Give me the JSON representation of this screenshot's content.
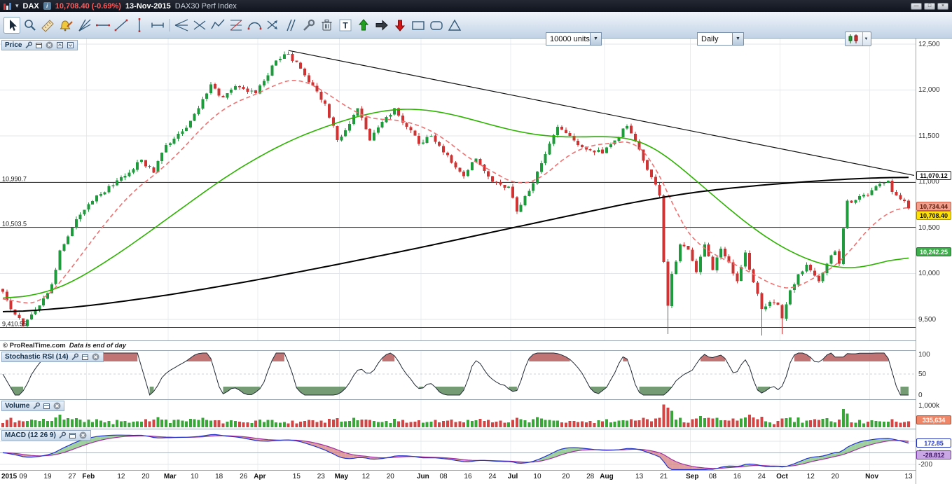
{
  "title_bar": {
    "symbol": "DAX",
    "price_change": "10,708.40 (-0.69%)",
    "date": "13-Nov-2015",
    "index_name": "DAX30 Perf Index"
  },
  "toolbar": {
    "units": "10000 units",
    "period": "Daily",
    "tools": [
      "cursor",
      "zoom",
      "ruler",
      "alarm-draw",
      "trend-fan",
      "horizontal-line",
      "oblique-line",
      "vertical-segment",
      "horizontal-segment",
      "pitchfork",
      "crossed-lines",
      "zigzag",
      "fibonacci-retracement",
      "arc",
      "crossed-arrows",
      "parallel-lines",
      "drawing-tools",
      "delete",
      "text",
      "arrow-up",
      "arrow-right",
      "arrow-down",
      "rectangle",
      "rounded-rectangle",
      "triangle"
    ]
  },
  "price_panel": {
    "title": "Price",
    "copyright_brand": "© ProRealTime.com",
    "copyright_note": "Data is end of day"
  },
  "stoch_panel": {
    "title": "Stochastic RSI (14)"
  },
  "volume_panel": {
    "title": "Volume"
  },
  "macd_panel": {
    "title": "MACD (12 26 9)"
  },
  "chart_data": {
    "type": "candlestick+indicators",
    "instrument": "DAX30 Perf Index",
    "timeframe": "Daily",
    "days": 223,
    "month_lines": [
      21,
      41,
      63,
      83,
      103,
      125,
      148,
      169,
      191,
      213
    ],
    "price": {
      "ylim": [
        9270,
        12560
      ],
      "y_ticks": [
        {
          "v": 12500,
          "label": "12,500"
        },
        {
          "v": 12000,
          "label": "12,000"
        },
        {
          "v": 11500,
          "label": "11,500"
        },
        {
          "v": 11000,
          "label": "11,000"
        },
        {
          "v": 10500,
          "label": "10,500"
        },
        {
          "v": 10000,
          "label": "10,000"
        },
        {
          "v": 9500,
          "label": "9,500"
        }
      ],
      "levels": [
        {
          "v": 10990.7,
          "label": "10,990.7"
        },
        {
          "v": 10503.5,
          "label": "10,503.5"
        },
        {
          "v": 9410.55,
          "label": "9,410.55"
        }
      ],
      "trendline": {
        "from_day": 70,
        "from_value": 12430,
        "right_edge_value": 11068
      },
      "close_anchors": [
        [
          0,
          9800
        ],
        [
          2,
          9610
        ],
        [
          5,
          9430
        ],
        [
          9,
          9650
        ],
        [
          12,
          9880
        ],
        [
          14,
          10250
        ],
        [
          17,
          10500
        ],
        [
          20,
          10694
        ],
        [
          23,
          10850
        ],
        [
          27,
          10960
        ],
        [
          31,
          11100
        ],
        [
          34,
          11240
        ],
        [
          37,
          11100
        ],
        [
          40,
          11401
        ],
        [
          44,
          11550
        ],
        [
          48,
          11800
        ],
        [
          51,
          12060
        ],
        [
          54,
          11920
        ],
        [
          57,
          12040
        ],
        [
          60,
          11980
        ],
        [
          62,
          11966
        ],
        [
          64,
          12100
        ],
        [
          67,
          12320
        ],
        [
          70,
          12390
        ],
        [
          73,
          12230
        ],
        [
          76,
          12050
        ],
        [
          79,
          11850
        ],
        [
          82,
          11454
        ],
        [
          84,
          11560
        ],
        [
          87,
          11800
        ],
        [
          90,
          11450
        ],
        [
          93,
          11650
        ],
        [
          96,
          11800
        ],
        [
          99,
          11600
        ],
        [
          102,
          11413
        ],
        [
          105,
          11500
        ],
        [
          109,
          11290
        ],
        [
          113,
          11060
        ],
        [
          116,
          11250
        ],
        [
          120,
          11000
        ],
        [
          124,
          10945
        ],
        [
          126,
          10676
        ],
        [
          129,
          10900
        ],
        [
          132,
          11200
        ],
        [
          136,
          11600
        ],
        [
          139,
          11500
        ],
        [
          143,
          11350
        ],
        [
          147,
          11309
        ],
        [
          150,
          11450
        ],
        [
          153,
          11604
        ],
        [
          156,
          11350
        ],
        [
          159,
          11050
        ],
        [
          161,
          10850
        ],
        [
          162,
          10124
        ],
        [
          163,
          9648
        ],
        [
          164,
          9997
        ],
        [
          165,
          10130
        ],
        [
          166,
          10315
        ],
        [
          168,
          10259
        ],
        [
          170,
          10015
        ],
        [
          172,
          10317
        ],
        [
          174,
          10038
        ],
        [
          176,
          10270
        ],
        [
          178,
          10120
        ],
        [
          180,
          9916
        ],
        [
          182,
          10229
        ],
        [
          184,
          9902
        ],
        [
          186,
          9612
        ],
        [
          188,
          9688
        ],
        [
          190,
          9660
        ],
        [
          191,
          9509
        ],
        [
          193,
          9814
        ],
        [
          195,
          9993
        ],
        [
          197,
          10096
        ],
        [
          198,
          10032
        ],
        [
          200,
          9915
        ],
        [
          202,
          10104
        ],
        [
          204,
          10240
        ],
        [
          205,
          10104
        ],
        [
          206,
          10492
        ],
        [
          207,
          10794
        ],
        [
          209,
          10801
        ],
        [
          212,
          10850
        ],
        [
          214,
          10950
        ],
        [
          216,
          10988
        ],
        [
          217,
          11010
        ],
        [
          218,
          10888
        ],
        [
          220,
          10808
        ],
        [
          221,
          10790
        ],
        [
          222,
          10708
        ]
      ],
      "wick_lows": [
        [
          163,
          9338
        ],
        [
          186,
          9325
        ],
        [
          191,
          9338
        ]
      ],
      "ma_fast_red": [
        [
          0,
          9750
        ],
        [
          5,
          9660
        ],
        [
          10,
          9700
        ],
        [
          15,
          9950
        ],
        [
          20,
          10250
        ],
        [
          26,
          10600
        ],
        [
          32,
          10900
        ],
        [
          38,
          11100
        ],
        [
          44,
          11350
        ],
        [
          50,
          11650
        ],
        [
          56,
          11850
        ],
        [
          62,
          11950
        ],
        [
          68,
          12080
        ],
        [
          72,
          12130
        ],
        [
          78,
          12010
        ],
        [
          84,
          11820
        ],
        [
          90,
          11680
        ],
        [
          96,
          11680
        ],
        [
          102,
          11620
        ],
        [
          108,
          11480
        ],
        [
          114,
          11260
        ],
        [
          120,
          11110
        ],
        [
          126,
          10960
        ],
        [
          132,
          11030
        ],
        [
          138,
          11280
        ],
        [
          144,
          11400
        ],
        [
          150,
          11420
        ],
        [
          155,
          11450
        ],
        [
          159,
          11230
        ],
        [
          163,
          10900
        ],
        [
          166,
          10550
        ],
        [
          170,
          10330
        ],
        [
          174,
          10210
        ],
        [
          178,
          10130
        ],
        [
          182,
          10040
        ],
        [
          186,
          9940
        ],
        [
          190,
          9850
        ],
        [
          194,
          9820
        ],
        [
          198,
          9940
        ],
        [
          202,
          10020
        ],
        [
          206,
          10150
        ],
        [
          210,
          10380
        ],
        [
          214,
          10570
        ],
        [
          218,
          10690
        ],
        [
          222,
          10734
        ]
      ],
      "ma_mid_green": [
        [
          0,
          9700
        ],
        [
          14,
          9820
        ],
        [
          28,
          10200
        ],
        [
          42,
          10650
        ],
        [
          56,
          11100
        ],
        [
          70,
          11450
        ],
        [
          84,
          11680
        ],
        [
          95,
          11800
        ],
        [
          105,
          11790
        ],
        [
          115,
          11680
        ],
        [
          125,
          11550
        ],
        [
          135,
          11480
        ],
        [
          145,
          11490
        ],
        [
          152,
          11500
        ],
        [
          158,
          11440
        ],
        [
          163,
          11280
        ],
        [
          168,
          11080
        ],
        [
          174,
          10860
        ],
        [
          180,
          10620
        ],
        [
          186,
          10420
        ],
        [
          192,
          10250
        ],
        [
          198,
          10130
        ],
        [
          204,
          10050
        ],
        [
          210,
          10040
        ],
        [
          216,
          10120
        ],
        [
          222,
          10242
        ]
      ],
      "ma_slow_black": [
        [
          0,
          9570
        ],
        [
          20,
          9640
        ],
        [
          40,
          9760
        ],
        [
          60,
          9910
        ],
        [
          80,
          10080
        ],
        [
          100,
          10260
        ],
        [
          120,
          10450
        ],
        [
          140,
          10640
        ],
        [
          155,
          10780
        ],
        [
          170,
          10890
        ],
        [
          185,
          10960
        ],
        [
          200,
          11010
        ],
        [
          212,
          11040
        ],
        [
          222,
          11050
        ]
      ],
      "tags": [
        {
          "label": "11,070.12",
          "v": 11070.12,
          "style": "white"
        },
        {
          "label": "10,734.44",
          "v": 10734.44,
          "style": "salmon"
        },
        {
          "label": "10,708.40",
          "v": 10708.4,
          "style": "yellow"
        },
        {
          "label": "10,242.25",
          "v": 10242.25,
          "style": "green"
        }
      ]
    },
    "stoch_rsi": {
      "period": 14,
      "overbought": 80,
      "oversold": 20,
      "y_ticks": [
        {
          "v": 100,
          "label": "100"
        },
        {
          "v": 50,
          "label": "50"
        },
        {
          "v": 0,
          "label": "0"
        }
      ]
    },
    "volume": {
      "ylim": [
        0,
        1050000
      ],
      "y_ticks": [
        {
          "v": 1000000,
          "label": "1,000k"
        }
      ],
      "tag": {
        "label": "335,634",
        "v": 335634
      }
    },
    "macd": {
      "params": "12 26 9",
      "ylim": [
        -300,
        420
      ],
      "y_ticks": [
        {
          "v": 200,
          "label": "200"
        },
        {
          "v": 0,
          "label": "0"
        },
        {
          "v": -200,
          "label": "-200"
        }
      ],
      "tags": [
        {
          "label": "172.85",
          "v": 172.85,
          "style": "blue"
        },
        {
          "label": "-28.812",
          "v": -28.812,
          "style": "purple"
        }
      ]
    },
    "x_ticks": [
      {
        "label": "2015",
        "d": 0,
        "bold": true,
        "first": true
      },
      {
        "label": "09",
        "d": 5
      },
      {
        "label": "19",
        "d": 11
      },
      {
        "label": "27",
        "d": 17
      },
      {
        "label": "Feb",
        "d": 21,
        "bold": true
      },
      {
        "label": "12",
        "d": 29
      },
      {
        "label": "20",
        "d": 35
      },
      {
        "label": "Mar",
        "d": 41,
        "bold": true
      },
      {
        "label": "10",
        "d": 47
      },
      {
        "label": "18",
        "d": 53
      },
      {
        "label": "26",
        "d": 59
      },
      {
        "label": "Apr",
        "d": 63,
        "bold": true
      },
      {
        "label": "15",
        "d": 72
      },
      {
        "label": "23",
        "d": 78
      },
      {
        "label": "May",
        "d": 83,
        "bold": true
      },
      {
        "label": "12",
        "d": 89
      },
      {
        "label": "20",
        "d": 95
      },
      {
        "label": "Jun",
        "d": 103,
        "bold": true
      },
      {
        "label": "08",
        "d": 108
      },
      {
        "label": "16",
        "d": 114
      },
      {
        "label": "24",
        "d": 120
      },
      {
        "label": "Jul",
        "d": 125,
        "bold": true
      },
      {
        "label": "10",
        "d": 131
      },
      {
        "label": "20",
        "d": 138
      },
      {
        "label": "28",
        "d": 144
      },
      {
        "label": "Aug",
        "d": 148,
        "bold": true
      },
      {
        "label": "13",
        "d": 156
      },
      {
        "label": "21",
        "d": 162
      },
      {
        "label": "Sep",
        "d": 169,
        "bold": true
      },
      {
        "label": "08",
        "d": 174
      },
      {
        "label": "16",
        "d": 180
      },
      {
        "label": "24",
        "d": 186
      },
      {
        "label": "Oct",
        "d": 191,
        "bold": true
      },
      {
        "label": "12",
        "d": 198
      },
      {
        "label": "20",
        "d": 204
      },
      {
        "label": "Nov",
        "d": 213,
        "bold": true
      },
      {
        "label": "13",
        "d": 222
      }
    ],
    "colors": {
      "candle_up": "#1f9a3c",
      "candle_down": "#cf3434",
      "ma_fast": "#f07070",
      "ma_mid": "#2db200",
      "ma_slow": "#000000",
      "stoch_line": "#222a36",
      "stoch_over": "#b65c5c",
      "stoch_under": "#5d8a5d",
      "macd_line": "#2233cc",
      "macd_signal": "#a030a0"
    }
  }
}
